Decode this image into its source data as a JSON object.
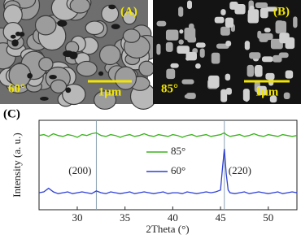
{
  "panels": [
    {
      "label": "(A)",
      "angle": "60°",
      "scale": "1μm"
    },
    {
      "label": "(B)",
      "angle": "85°",
      "scale": "1μm"
    }
  ],
  "chart_data": {
    "type": "line",
    "panel_label": "(C)",
    "xlabel": "2Theta (°)",
    "ylabel": "Intensity (a. u.)",
    "x": [
      26,
      26.5,
      27,
      27.5,
      28,
      28.5,
      29,
      29.5,
      30,
      30.5,
      31,
      31.5,
      32,
      32.5,
      33,
      33.5,
      34,
      34.5,
      35,
      35.5,
      36,
      36.5,
      37,
      37.5,
      38,
      38.5,
      39,
      39.5,
      40,
      40.5,
      41,
      41.5,
      42,
      42.5,
      43,
      43.5,
      44,
      44.5,
      45,
      45.2,
      45.4,
      45.6,
      45.8,
      46,
      46.5,
      47,
      47.5,
      48,
      48.5,
      49,
      49.5,
      50,
      50.5,
      51,
      51.5,
      52,
      52.5,
      53
    ],
    "series": [
      {
        "name": "85°",
        "color": "#3cb31e",
        "values": [
          8.3,
          8.4,
          8.2,
          8.5,
          8.3,
          8.2,
          8.4,
          8.3,
          8.1,
          8.4,
          8.3,
          8.5,
          8.6,
          8.3,
          8.2,
          8.4,
          8.3,
          8.1,
          8.3,
          8.4,
          8.2,
          8.3,
          8.5,
          8.3,
          8.2,
          8.4,
          8.3,
          8.2,
          8.4,
          8.3,
          8.1,
          8.3,
          8.4,
          8.2,
          8.3,
          8.4,
          8.2,
          8.3,
          8.4,
          8.5,
          8.6,
          8.4,
          8.3,
          8.2,
          8.3,
          8.4,
          8.2,
          8.3,
          8.5,
          8.3,
          8.2,
          8.4,
          8.3,
          8.2,
          8.4,
          8.3,
          8.2,
          8.3
        ]
      },
      {
        "name": "60°",
        "color": "#2d3fd6",
        "values": [
          1.9,
          2.0,
          2.4,
          2.0,
          1.8,
          1.9,
          2.0,
          1.8,
          1.9,
          2.0,
          1.9,
          1.8,
          2.1,
          1.9,
          1.8,
          2.0,
          1.9,
          1.8,
          1.9,
          2.0,
          1.8,
          1.9,
          2.0,
          1.9,
          1.8,
          1.9,
          2.0,
          1.8,
          1.9,
          1.9,
          1.8,
          2.0,
          1.9,
          1.8,
          1.9,
          2.0,
          1.9,
          2.0,
          2.2,
          4.6,
          6.8,
          4.0,
          2.2,
          1.9,
          1.8,
          1.9,
          2.0,
          1.8,
          1.9,
          2.0,
          1.9,
          1.8,
          1.9,
          2.0,
          1.8,
          1.9,
          2.0,
          1.9
        ]
      }
    ],
    "xlim": [
      26,
      53
    ],
    "xticks": [
      30,
      35,
      40,
      45,
      50
    ],
    "ylim": [
      0,
      10
    ],
    "annotations": [
      {
        "x": 32,
        "label": "(200)"
      },
      {
        "x": 45.4,
        "label": "(220)"
      }
    ]
  }
}
